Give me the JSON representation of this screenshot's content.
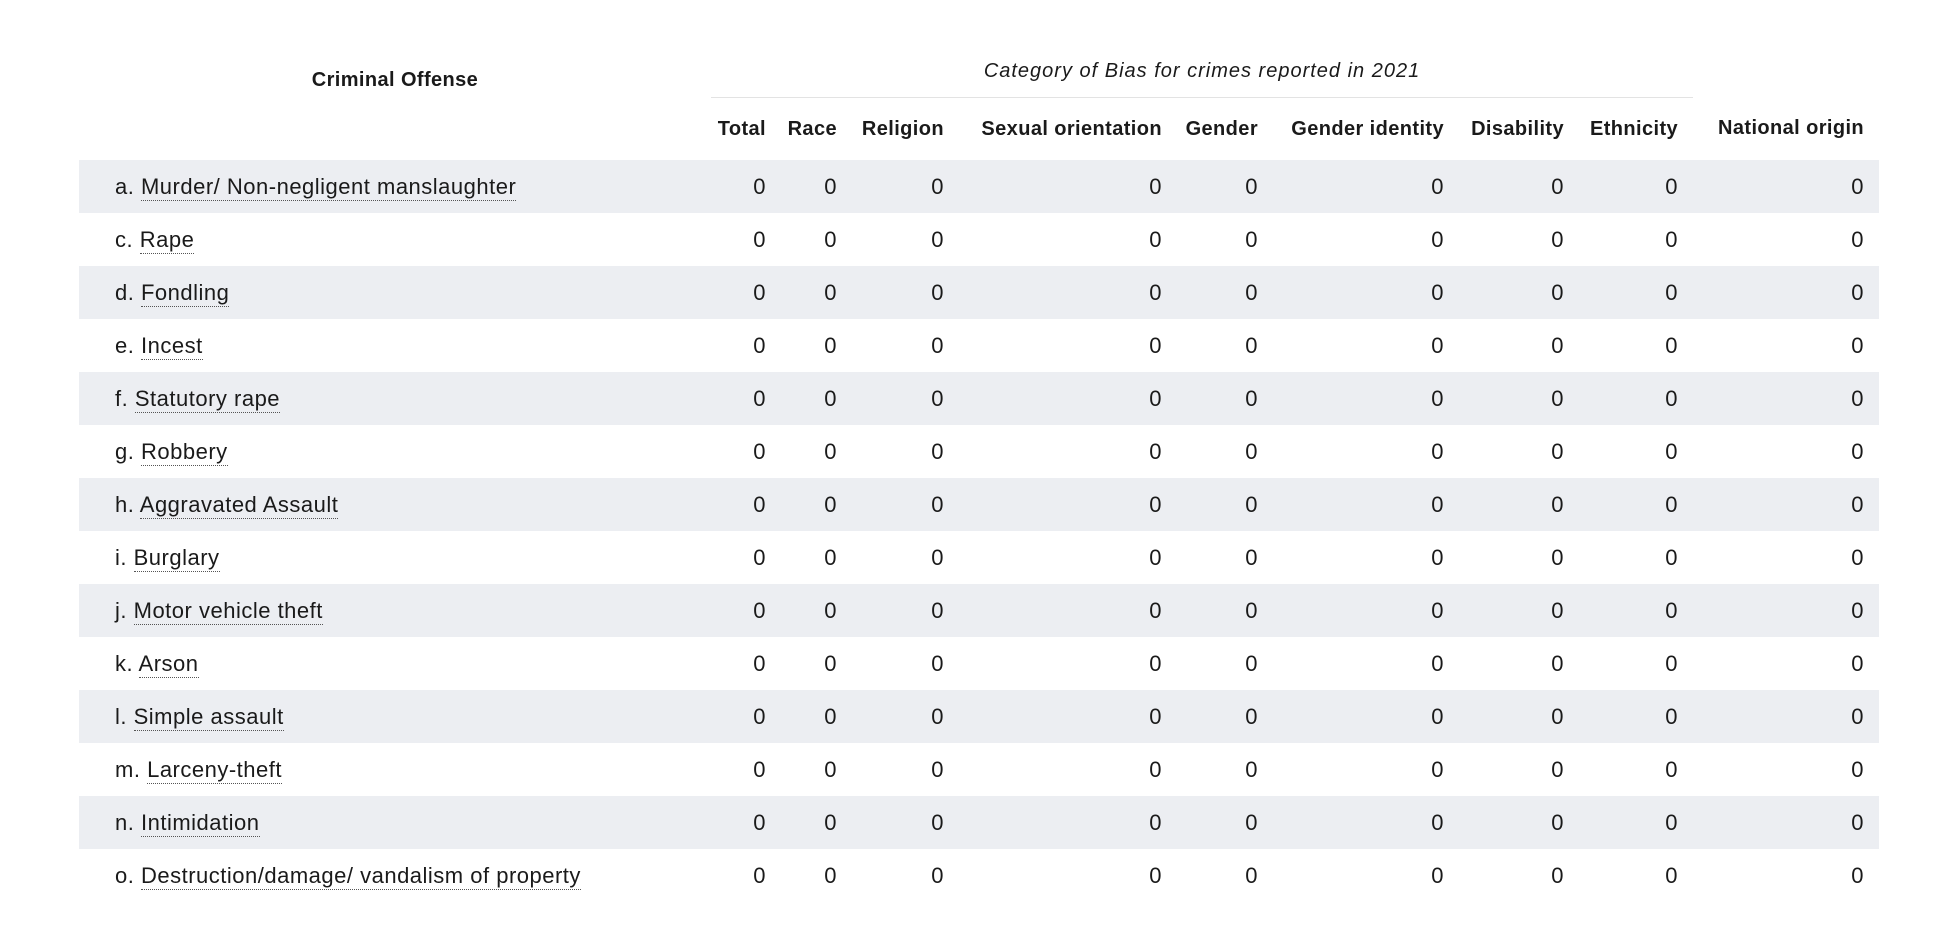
{
  "table": {
    "offense_header": "Criminal Offense",
    "caption": "Category of Bias for crimes reported in 2021",
    "columns": [
      "Total",
      "Race",
      "Religion",
      "Sexual orientation",
      "Gender",
      "Gender identity",
      "Disability",
      "Ethnicity",
      "National origin"
    ],
    "rows": [
      {
        "prefix": "a.",
        "label": "Murder/ Non-negligent manslaughter",
        "values": [
          "0",
          "0",
          "0",
          "0",
          "0",
          "0",
          "0",
          "0",
          "0"
        ]
      },
      {
        "prefix": "c.",
        "label": "Rape",
        "values": [
          "0",
          "0",
          "0",
          "0",
          "0",
          "0",
          "0",
          "0",
          "0"
        ]
      },
      {
        "prefix": "d.",
        "label": "Fondling",
        "values": [
          "0",
          "0",
          "0",
          "0",
          "0",
          "0",
          "0",
          "0",
          "0"
        ]
      },
      {
        "prefix": "e.",
        "label": "Incest",
        "values": [
          "0",
          "0",
          "0",
          "0",
          "0",
          "0",
          "0",
          "0",
          "0"
        ]
      },
      {
        "prefix": "f.",
        "label": "Statutory rape",
        "values": [
          "0",
          "0",
          "0",
          "0",
          "0",
          "0",
          "0",
          "0",
          "0"
        ]
      },
      {
        "prefix": "g.",
        "label": "Robbery",
        "values": [
          "0",
          "0",
          "0",
          "0",
          "0",
          "0",
          "0",
          "0",
          "0"
        ]
      },
      {
        "prefix": "h.",
        "label": "Aggravated Assault",
        "values": [
          "0",
          "0",
          "0",
          "0",
          "0",
          "0",
          "0",
          "0",
          "0"
        ]
      },
      {
        "prefix": "i.",
        "label": "Burglary",
        "values": [
          "0",
          "0",
          "0",
          "0",
          "0",
          "0",
          "0",
          "0",
          "0"
        ]
      },
      {
        "prefix": "j.",
        "label": "Motor vehicle theft",
        "values": [
          "0",
          "0",
          "0",
          "0",
          "0",
          "0",
          "0",
          "0",
          "0"
        ]
      },
      {
        "prefix": "k.",
        "label": "Arson",
        "values": [
          "0",
          "0",
          "0",
          "0",
          "0",
          "0",
          "0",
          "0",
          "0"
        ]
      },
      {
        "prefix": "l.",
        "label": "Simple assault",
        "values": [
          "0",
          "0",
          "0",
          "0",
          "0",
          "0",
          "0",
          "0",
          "0"
        ]
      },
      {
        "prefix": "m.",
        "label": "Larceny-theft",
        "values": [
          "0",
          "0",
          "0",
          "0",
          "0",
          "0",
          "0",
          "0",
          "0"
        ]
      },
      {
        "prefix": "n.",
        "label": "Intimidation",
        "values": [
          "0",
          "0",
          "0",
          "0",
          "0",
          "0",
          "0",
          "0",
          "0"
        ]
      },
      {
        "prefix": "o.",
        "label": "Destruction/damage/ vandalism of property",
        "values": [
          "0",
          "0",
          "0",
          "0",
          "0",
          "0",
          "0",
          "0",
          "0"
        ]
      }
    ]
  },
  "colors": {
    "row_shade": "#eceef2",
    "text": "#1a1a1a",
    "rule": "#e3e3e3"
  }
}
